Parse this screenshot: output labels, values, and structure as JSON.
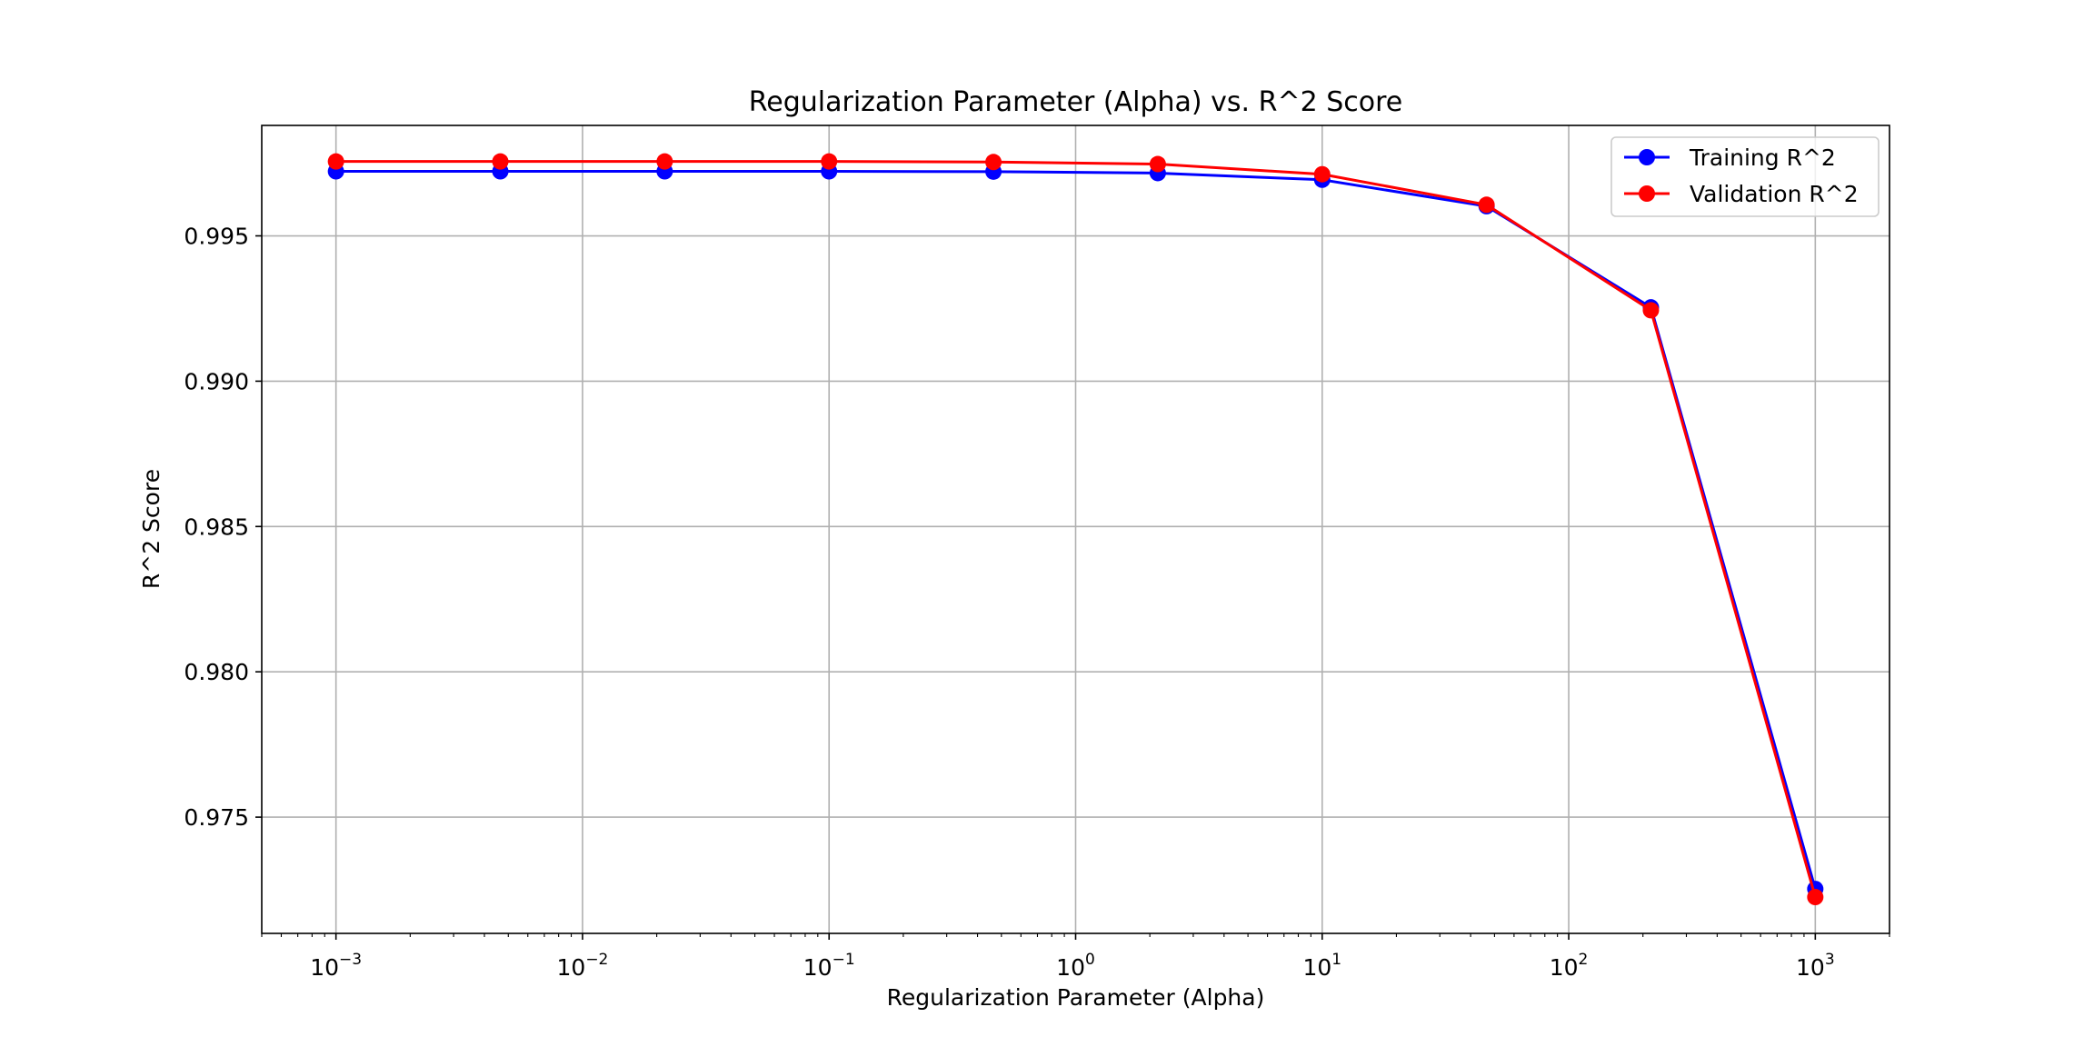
{
  "chart_data": {
    "type": "line",
    "title": "Regularization Parameter (Alpha) vs. R^2 Score",
    "xlabel": "Regularization Parameter (Alpha)",
    "ylabel": "R^2 Score",
    "xscale": "log",
    "xlim": [
      0.0005,
      2000
    ],
    "ylim": [
      0.971,
      0.9988
    ],
    "grid": true,
    "legend_position": "upper right",
    "x": [
      0.001,
      0.004642,
      0.02154,
      0.1,
      0.4642,
      2.154,
      10,
      46.42,
      215.4,
      1000
    ],
    "x_ticks": [
      {
        "value": 0.001,
        "base": "10",
        "exponent": "−3"
      },
      {
        "value": 0.01,
        "base": "10",
        "exponent": "−2"
      },
      {
        "value": 0.1,
        "base": "10",
        "exponent": "−1"
      },
      {
        "value": 1,
        "base": "10",
        "exponent": "0"
      },
      {
        "value": 10,
        "base": "10",
        "exponent": "1"
      },
      {
        "value": 100,
        "base": "10",
        "exponent": "2"
      },
      {
        "value": 1000,
        "base": "10",
        "exponent": "3"
      }
    ],
    "y_ticks": [
      {
        "value": 0.975,
        "label": "0.975"
      },
      {
        "value": 0.98,
        "label": "0.980"
      },
      {
        "value": 0.985,
        "label": "0.985"
      },
      {
        "value": 0.99,
        "label": "0.990"
      },
      {
        "value": 0.995,
        "label": "0.995"
      }
    ],
    "series": [
      {
        "name": "Training R^2",
        "color": "#0000ff",
        "values": [
          0.99722,
          0.99722,
          0.99722,
          0.99722,
          0.99721,
          0.99716,
          0.99693,
          0.99602,
          0.99254,
          0.97253
        ]
      },
      {
        "name": "Validation R^2",
        "color": "#ff0000",
        "values": [
          0.99756,
          0.99756,
          0.99756,
          0.99756,
          0.99754,
          0.99747,
          0.99712,
          0.99607,
          0.99244,
          0.97225
        ]
      }
    ]
  }
}
